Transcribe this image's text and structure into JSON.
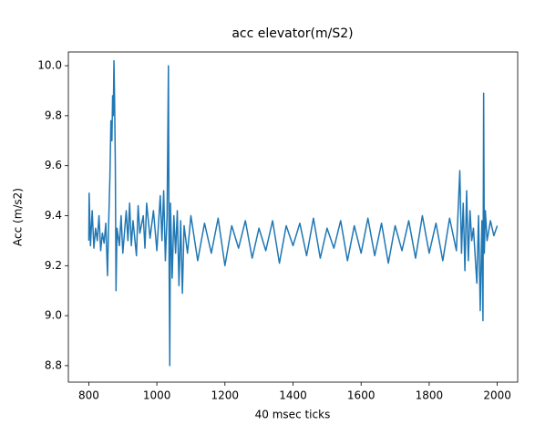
{
  "chart_data": {
    "type": "line",
    "title": "acc elevator(m/S2)",
    "x_label": "40 msec ticks",
    "y_label": "Acc (m/s2)",
    "x": [
      800,
      801,
      805,
      810,
      815,
      820,
      825,
      830,
      835,
      840,
      845,
      850,
      855,
      858,
      862,
      865,
      868,
      870,
      872,
      874,
      876,
      878,
      880,
      883,
      890,
      895,
      900,
      910,
      915,
      920,
      925,
      930,
      940,
      945,
      950,
      960,
      965,
      970,
      980,
      990,
      1000,
      1010,
      1015,
      1020,
      1025,
      1030,
      1034,
      1036,
      1038,
      1040,
      1045,
      1050,
      1055,
      1060,
      1065,
      1070,
      1075,
      1080,
      1090,
      1100,
      1120,
      1140,
      1160,
      1180,
      1200,
      1220,
      1240,
      1260,
      1280,
      1300,
      1320,
      1340,
      1360,
      1380,
      1400,
      1420,
      1440,
      1460,
      1480,
      1500,
      1520,
      1540,
      1560,
      1580,
      1600,
      1620,
      1640,
      1660,
      1680,
      1700,
      1720,
      1740,
      1760,
      1780,
      1800,
      1820,
      1840,
      1860,
      1880,
      1890,
      1895,
      1900,
      1905,
      1910,
      1915,
      1920,
      1925,
      1930,
      1940,
      1945,
      1950,
      1955,
      1958,
      1960,
      1962,
      1965,
      1970,
      1980,
      1990,
      2000
    ],
    "series": [
      {
        "name": "acc",
        "color": "#1f77b4",
        "values": [
          9.3,
          9.49,
          9.28,
          9.42,
          9.27,
          9.35,
          9.3,
          9.4,
          9.26,
          9.33,
          9.29,
          9.37,
          9.16,
          9.35,
          9.55,
          9.78,
          9.7,
          9.88,
          9.8,
          10.02,
          9.85,
          9.6,
          9.1,
          9.35,
          9.28,
          9.4,
          9.25,
          9.42,
          9.3,
          9.45,
          9.28,
          9.38,
          9.24,
          9.44,
          9.33,
          9.4,
          9.27,
          9.45,
          9.31,
          9.42,
          9.26,
          9.48,
          9.3,
          9.5,
          9.22,
          9.4,
          10.0,
          9.2,
          8.8,
          9.45,
          9.15,
          9.4,
          9.25,
          9.42,
          9.12,
          9.38,
          9.09,
          9.36,
          9.25,
          9.4,
          9.22,
          9.37,
          9.25,
          9.39,
          9.2,
          9.36,
          9.27,
          9.38,
          9.23,
          9.35,
          9.26,
          9.38,
          9.21,
          9.36,
          9.28,
          9.37,
          9.24,
          9.39,
          9.23,
          9.35,
          9.27,
          9.38,
          9.22,
          9.36,
          9.25,
          9.39,
          9.24,
          9.37,
          9.21,
          9.36,
          9.26,
          9.38,
          9.23,
          9.4,
          9.25,
          9.37,
          9.22,
          9.39,
          9.26,
          9.58,
          9.25,
          9.45,
          9.18,
          9.5,
          9.22,
          9.42,
          9.3,
          9.35,
          9.13,
          9.4,
          9.02,
          9.38,
          8.98,
          9.89,
          9.25,
          9.42,
          9.3,
          9.38,
          9.32,
          9.36
        ]
      }
    ],
    "xlim": [
      740,
      2060
    ],
    "xticks": [
      800,
      1000,
      1200,
      1400,
      1600,
      1800,
      2000
    ],
    "ylim": [
      8.734,
      10.055
    ],
    "yticks": [
      8.8,
      {
        "value": 9.0,
        "label": "9.0"
      },
      9.2,
      9.4,
      9.6,
      9.8,
      {
        "value": 10.0,
        "label": "10.0"
      }
    ],
    "grid": false
  }
}
